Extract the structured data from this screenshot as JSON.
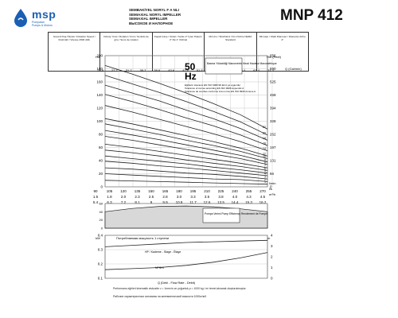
{
  "header": {
    "brand": "msp",
    "brand_sub_1": "Pompaları",
    "brand_sub_2": "Pumps & Motors",
    "title_lines": [
      "SEMBAKİYEL NORYL F A NLI",
      "SEMIAXIAL NORYL IMPELLER",
      "SEMIAXIAL IMPELLER",
      "ВЫСОКОЕ И НАПОРНОЕ"
    ],
    "model": "MNP 412"
  },
  "spec_table": [
    "Güvenli Kaş Ölçüsü / Rotation Speed / Drehzahl / Vitesse 2900 d/dk",
    "Dönüş Yönü / Rotation Yönü / Sentido de giro / Sens de rotation",
    "Kaçak Çıkış / Outlet / Sortie 2\" İçten Pakeli / 2\" Rp 1\" Ordinal",
    "Mil Ucu / Shaft End / Fin d'Arbre NEMA Standard",
    "Mil Çapı / Shaft Diameter / Diamètre Arbre 4\""
  ],
  "colors": {
    "curve": "#222222",
    "grid": "#b0b0b0",
    "axis": "#333333",
    "efficiency_fill": "#d8d8d8",
    "box": "#111111",
    "brand": "#1a5fb4"
  },
  "chart_data": [
    {
      "type": "line",
      "title": "Head vs Flow",
      "speed_label": "50",
      "speed_unit": "Hz",
      "legend_box": "Basma Yüksekliği Manometric Head Hauteur Manométrique",
      "tolerance_text": [
        "Eğrilerin toleransı EN ISO 9906:99 Ek A ya uygundur",
        "Tolerance of curves according EN ISO 9906 Appendix A",
        "Tolérance de courbes conforme à la norme EN ISO 9906 Annexe A"
      ],
      "units": {
        "y_left": "Hm",
        "y_right": "Hm (Feet)",
        "x_top": "Q (Gal/min)",
        "x_bottom_m3": "m³/h",
        "x_bottom_ls": "l/s",
        "x_bottom_lmin": "l/min"
      },
      "ylim": [
        0,
        200
      ],
      "y_ticks_left": [
        0,
        20,
        40,
        60,
        80,
        100,
        120,
        140,
        160,
        180,
        200
      ],
      "y_ticks_right": [
        "0",
        "66",
        "131",
        "197",
        "262",
        "328",
        "394",
        "459",
        "525",
        "590",
        "656"
      ],
      "x_top_ticks": [
        "23.8",
        "27.7",
        "31.7",
        "35.7",
        "39.6",
        "43.6",
        "47.6",
        "51.5",
        "55.5",
        "59.4",
        "63.4",
        "67.4",
        "71.3"
      ],
      "x_bottom_lmin": [
        "90",
        "105",
        "120",
        "135",
        "150",
        "165",
        "180",
        "195",
        "210",
        "225",
        "240",
        "255",
        "270"
      ],
      "x_bottom_ls": [
        "1.5",
        "1.8",
        "2.0",
        "2.3",
        "2.5",
        "2.8",
        "3.0",
        "3.3",
        "3.5",
        "3.8",
        "4.0",
        "4.3",
        "4.5"
      ],
      "x_bottom_m3": [
        "5.4",
        "6.3",
        "7.2",
        "8.1",
        "9",
        "9.9",
        "10.8",
        "11.7",
        "12.6",
        "13.5",
        "14.4",
        "15.3",
        "16.2"
      ],
      "x": [
        90,
        120,
        150,
        180,
        210,
        240,
        270
      ],
      "series": [
        {
          "name": "22",
          "values": [
            185,
            172,
            158,
            143,
            127,
            110,
            88
          ]
        },
        {
          "name": "20",
          "values": [
            170,
            157,
            144,
            130,
            115,
            99,
            79
          ]
        },
        {
          "name": "18",
          "values": [
            155,
            143,
            131,
            117,
            104,
            89,
            71
          ]
        },
        {
          "name": "16",
          "values": [
            141,
            130,
            118,
            105,
            93,
            79,
            63
          ]
        },
        {
          "name": "14",
          "values": [
            124,
            114,
            103,
            92,
            81,
            69,
            55
          ]
        },
        {
          "name": "12",
          "values": [
            104,
            96,
            87,
            78,
            69,
            59,
            47
          ]
        },
        {
          "name": "10",
          "values": [
            96,
            88,
            80,
            71,
            63,
            54,
            43
          ]
        },
        {
          "name": "9",
          "values": [
            86,
            79,
            72,
            64,
            56,
            48,
            38
          ]
        },
        {
          "name": "8",
          "values": [
            77,
            71,
            64,
            57,
            50,
            43,
            34
          ]
        },
        {
          "name": "7",
          "values": [
            65,
            60,
            54,
            48,
            42,
            36,
            29
          ]
        },
        {
          "name": "6",
          "values": [
            56,
            52,
            47,
            41,
            36,
            31,
            25
          ]
        },
        {
          "name": "5",
          "values": [
            47,
            43,
            39,
            35,
            30,
            26,
            21
          ]
        },
        {
          "name": "4",
          "values": [
            39,
            36,
            32,
            29,
            25,
            21,
            17
          ]
        },
        {
          "name": "3",
          "values": [
            29,
            27,
            24,
            21,
            19,
            16,
            12
          ]
        },
        {
          "name": "2",
          "values": [
            20,
            18,
            16,
            14,
            12,
            11,
            8
          ]
        },
        {
          "name": "1",
          "values": [
            10,
            9,
            8,
            7,
            6,
            5,
            4
          ]
        }
      ]
    },
    {
      "type": "area",
      "title": "Pump Efficiency",
      "legend_box": "Pompa Verimi Pump Efficiency Rendement de Pompe",
      "ylim": [
        0,
        60
      ],
      "y_ticks": [
        "0",
        "20",
        "40",
        "60"
      ],
      "x": [
        90,
        120,
        150,
        180,
        210,
        240,
        270
      ],
      "values": [
        40,
        48,
        53,
        54,
        52,
        47,
        40
      ]
    },
    {
      "type": "line",
      "title": "Power per stage / NPSH",
      "power_label": "Потребляемая мощность 1 ступени",
      "power_unit": "kW",
      "stage_label": "HP / Kademe - Stage - Étage",
      "npsh_label": "NPSHr",
      "npsh_unit": "m",
      "flow_caption": "Q (Debi - Flow Rate - Débit)",
      "ylim_left": [
        0.1,
        0.4
      ],
      "y_ticks_left": [
        "0.4",
        "0.3",
        "0.2",
        "0.1"
      ],
      "y_ticks_right": [
        "4",
        "3",
        "2",
        "1",
        "0"
      ],
      "x": [
        90,
        120,
        150,
        180,
        210,
        240,
        270
      ],
      "power_kw": [
        0.32,
        0.33,
        0.34,
        0.35,
        0.355,
        0.36,
        0.365
      ],
      "npsh_m": [
        0.8,
        0.9,
        1.0,
        1.2,
        1.5,
        1.9,
        2.4
      ]
    }
  ],
  "footnotes": [
    "Performans eğrileri kinematik viskozite ν = 1mm²/s ve yoğunluk ρ = 1000 kg / m³ temel alınarak oluşturulmuştur.",
    "Рабочие характеристики основаны на кинематической вязкости 1000кг/м3"
  ]
}
